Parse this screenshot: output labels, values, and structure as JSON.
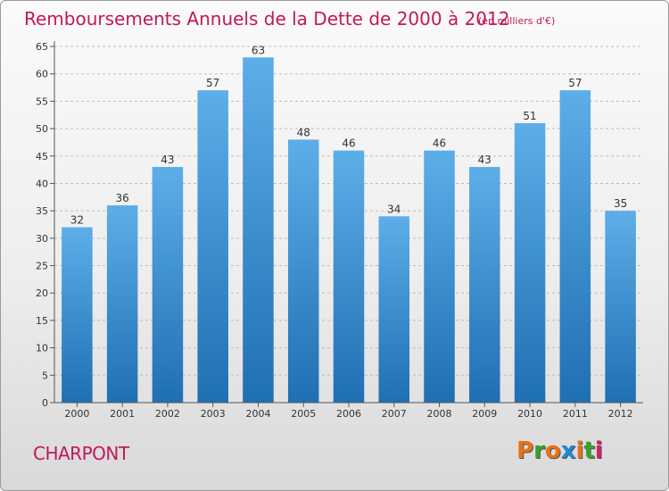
{
  "header": {
    "title": "Remboursements Annuels de la Dette de 2000 à 2012",
    "unit": "(en milliers d'€)"
  },
  "footer": {
    "commune": "CHARPONT",
    "logo_text": "Proxiti",
    "logo_colors": [
      "#e8711a",
      "#3aa02a",
      "#e8711a",
      "#1e88d6",
      "#e8711a",
      "#3aa02a",
      "#d81b60"
    ]
  },
  "colors": {
    "title": "#c2185b",
    "bar_top": "#5daee8",
    "bar_bottom": "#1f6fb3",
    "grid": "#bdbdbd",
    "axis": "#555555"
  },
  "chart_data": {
    "type": "bar",
    "categories": [
      "2000",
      "2001",
      "2002",
      "2003",
      "2004",
      "2005",
      "2006",
      "2007",
      "2008",
      "2009",
      "2010",
      "2011",
      "2012"
    ],
    "values": [
      32,
      36,
      43,
      57,
      63,
      48,
      46,
      34,
      46,
      43,
      51,
      57,
      35
    ],
    "title": "Remboursements Annuels de la Dette de 2000 à 2012",
    "xlabel": "",
    "ylabel": "",
    "ylim": [
      0,
      65
    ],
    "yticks": [
      0,
      5,
      10,
      15,
      20,
      25,
      30,
      35,
      40,
      45,
      50,
      55,
      60,
      65
    ],
    "grid": true,
    "data_labels": true
  }
}
